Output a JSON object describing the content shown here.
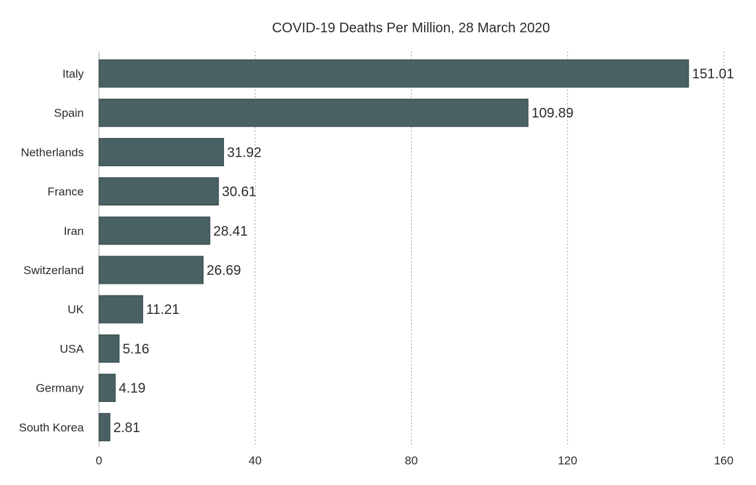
{
  "chart_data": {
    "type": "bar",
    "orientation": "horizontal",
    "title": "COVID-19 Deaths Per Million, 28 March 2020",
    "xlabel": "",
    "ylabel": "",
    "categories": [
      "Italy",
      "Spain",
      "Netherlands",
      "France",
      "Iran",
      "Switzerland",
      "UK",
      "USA",
      "Germany",
      "South Korea"
    ],
    "values": [
      151.01,
      109.89,
      31.92,
      30.61,
      28.41,
      26.69,
      11.21,
      5.16,
      4.19,
      2.81
    ],
    "value_labels": [
      "151.01",
      "109.89",
      "31.92",
      "30.61",
      "28.41",
      "26.69",
      "11.21",
      "5.16",
      "4.19",
      "2.81"
    ],
    "xlim": [
      0,
      160
    ],
    "xticks": [
      0,
      40,
      80,
      120,
      160
    ],
    "xtick_labels": [
      "0",
      "40",
      "80",
      "120",
      "160"
    ],
    "grid": "vertical dotted",
    "legend": "none",
    "colors": {
      "bar": "#4a6163",
      "bar_edge": "#2f4244",
      "grid": "#9a9a9a",
      "axis": "#b5b5b5",
      "text": "#2b2b2b"
    }
  }
}
